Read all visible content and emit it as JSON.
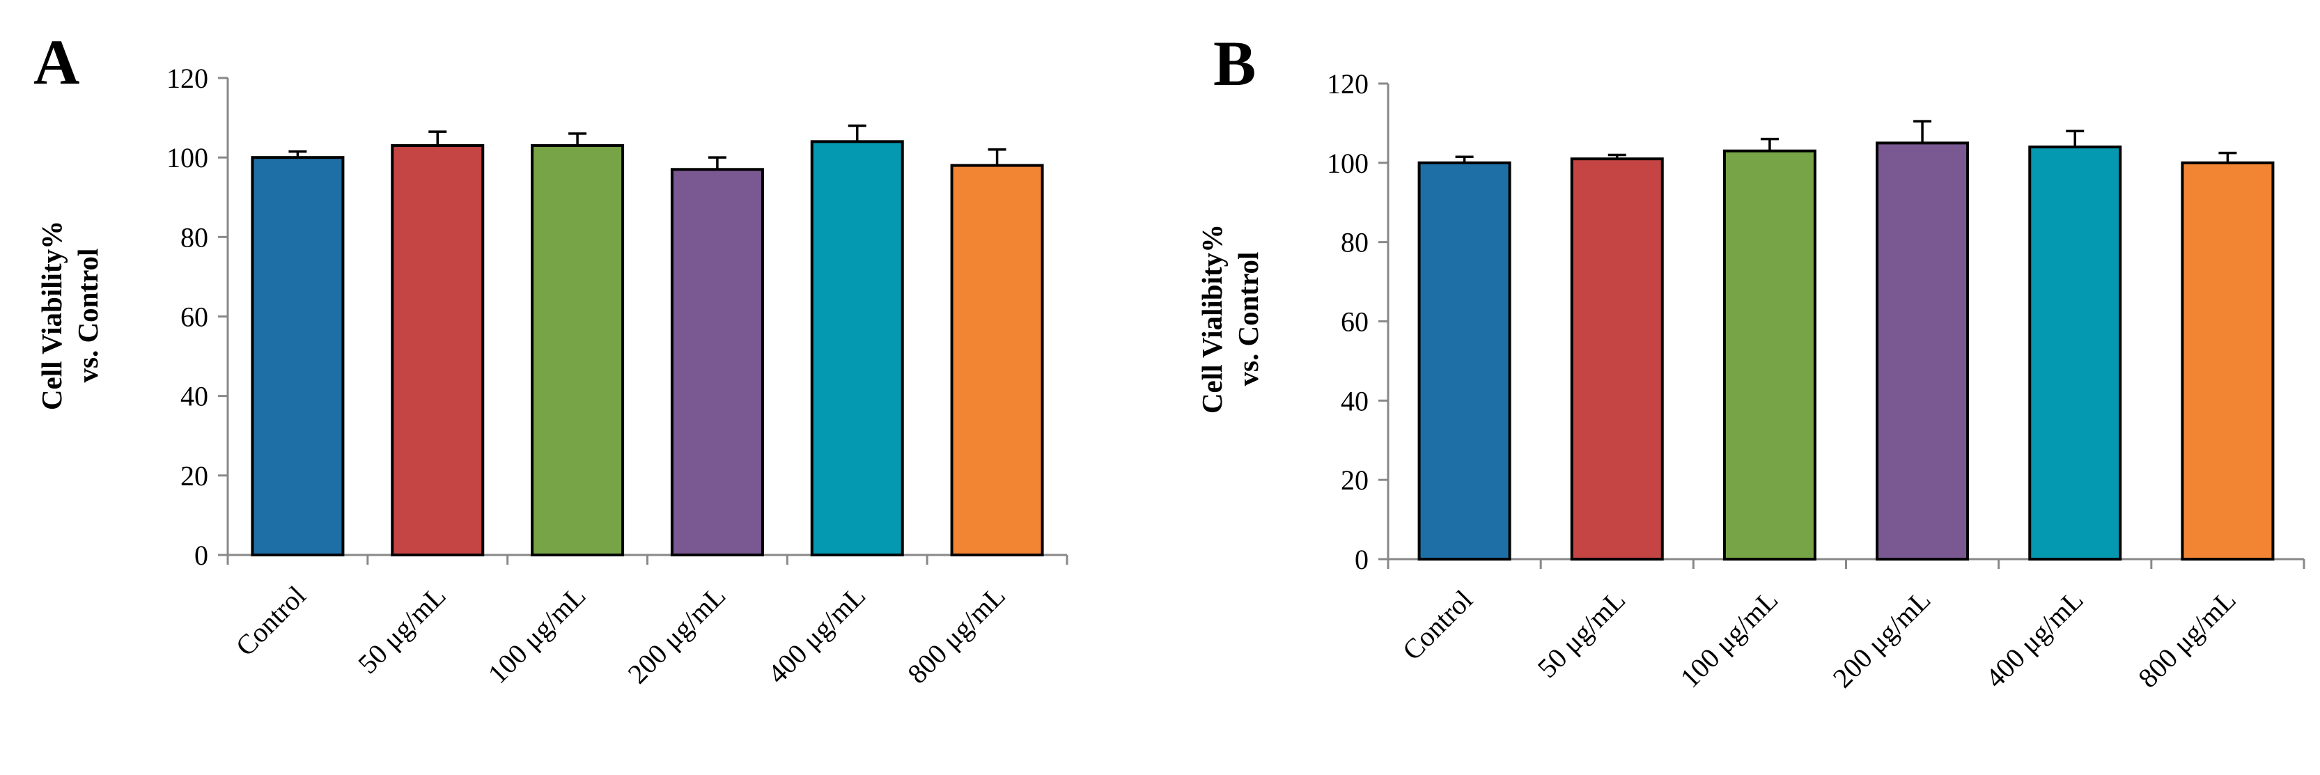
{
  "chart_data": [
    {
      "type": "bar",
      "panel_label": "A",
      "ylabel": "Cell Viability%",
      "ylabel_line2": "vs. Control",
      "ylim": [
        0,
        120
      ],
      "yticks": [
        0,
        20,
        40,
        60,
        80,
        100,
        120
      ],
      "grid": false,
      "categories": [
        "Control",
        "50 μg/mL",
        "100 μg/mL",
        "200 μg/mL",
        "400 μg/mL",
        "800 μg/mL"
      ],
      "values": [
        100,
        103,
        103,
        97,
        104,
        98
      ],
      "errors": [
        1.5,
        3.5,
        3,
        3,
        4,
        4
      ],
      "colors": [
        "#1f6fa7",
        "#c44544",
        "#77a446",
        "#7a5992",
        "#0599b1",
        "#f28534"
      ]
    },
    {
      "type": "bar",
      "panel_label": "B",
      "ylabel": "Cell Vialibity%",
      "ylabel_line2": "vs. Control",
      "ylim": [
        0,
        120
      ],
      "yticks": [
        0,
        20,
        40,
        60,
        80,
        100,
        120
      ],
      "grid": false,
      "categories": [
        "Control",
        "50 μg/mL",
        "100 μg/mL",
        "200 μg/mL",
        "400 μg/mL",
        "800 μg/mL"
      ],
      "values": [
        100,
        101,
        103,
        105,
        104,
        100
      ],
      "errors": [
        1.5,
        1,
        3,
        5.5,
        4,
        2.5
      ],
      "colors": [
        "#1f6fa7",
        "#c44544",
        "#77a446",
        "#7a5992",
        "#0599b1",
        "#f28534"
      ]
    }
  ]
}
